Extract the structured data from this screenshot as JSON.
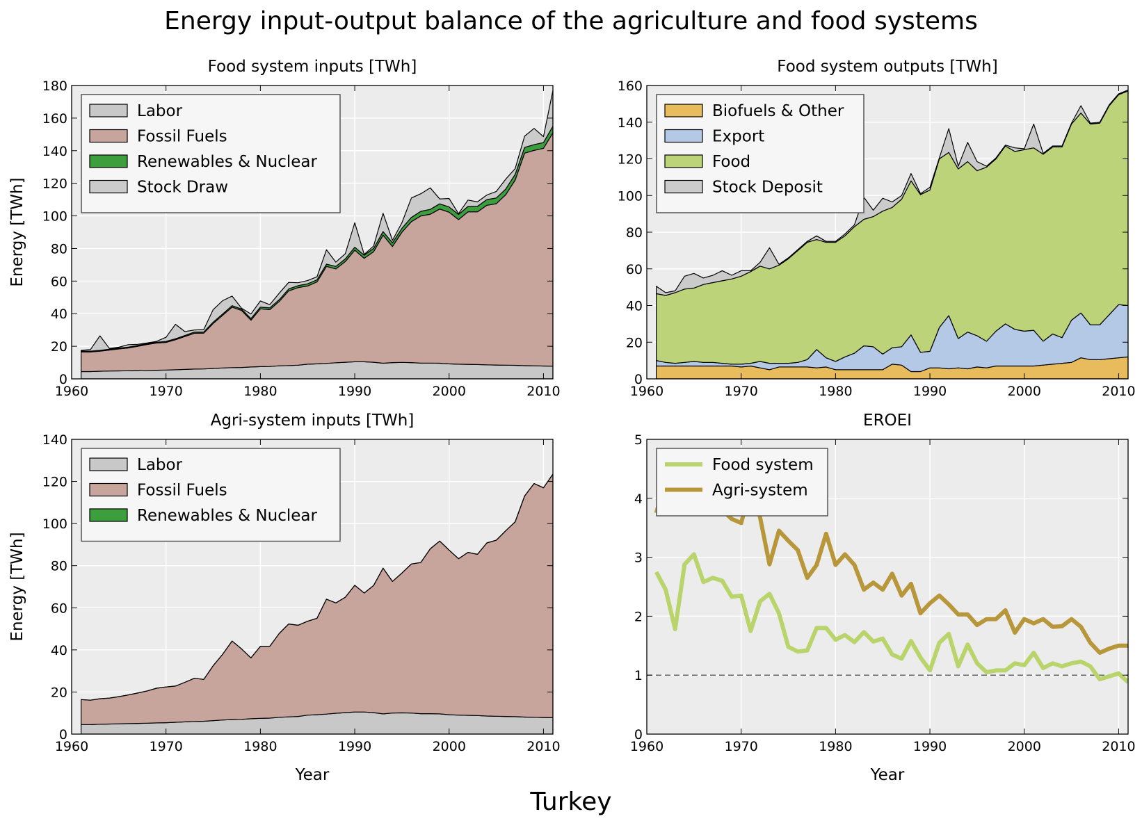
{
  "figure": {
    "title": "Energy input-output balance of the agriculture and food systems",
    "footer": "Turkey"
  },
  "chart_data": [
    {
      "id": "food_inputs",
      "type": "area",
      "stacked": true,
      "title": "Food system inputs [TWh]",
      "xlabel": "",
      "ylabel": "Energy [TWh]",
      "xlim": [
        1960,
        2011
      ],
      "ylim": [
        0,
        180
      ],
      "xticks": [
        1960,
        1970,
        1980,
        1990,
        2000,
        2010
      ],
      "yticks": [
        0,
        20,
        40,
        60,
        80,
        100,
        120,
        140,
        160,
        180
      ],
      "grid": true,
      "legend": "top-left",
      "x": [
        1961,
        1962,
        1963,
        1964,
        1965,
        1966,
        1967,
        1968,
        1969,
        1970,
        1971,
        1972,
        1973,
        1974,
        1975,
        1976,
        1977,
        1978,
        1979,
        1980,
        1981,
        1982,
        1983,
        1984,
        1985,
        1986,
        1987,
        1988,
        1989,
        1990,
        1991,
        1992,
        1993,
        1994,
        1995,
        1996,
        1997,
        1998,
        1999,
        2000,
        2001,
        2002,
        2003,
        2004,
        2005,
        2006,
        2007,
        2008,
        2009,
        2010,
        2011
      ],
      "series": [
        {
          "name": "Labor",
          "color": "#c8c8c8",
          "values": [
            4.5,
            4.5,
            4.7,
            4.8,
            4.9,
            5.0,
            5.1,
            5.2,
            5.3,
            5.4,
            5.6,
            5.8,
            6.0,
            6.1,
            6.4,
            6.7,
            6.9,
            7.0,
            7.3,
            7.5,
            7.6,
            8.0,
            8.2,
            8.4,
            9.0,
            9.2,
            9.5,
            9.9,
            10.2,
            10.5,
            10.5,
            10.2,
            9.6,
            10.0,
            10.1,
            10.0,
            9.7,
            9.7,
            9.6,
            9.2,
            9.0,
            8.9,
            8.8,
            8.6,
            8.5,
            8.4,
            8.3,
            8.1,
            8.0,
            7.9,
            7.8
          ]
        },
        {
          "name": "Fossil Fuels",
          "color": "#c8a59c",
          "values": [
            12.0,
            12.0,
            12.3,
            12.9,
            13.5,
            14.0,
            14.9,
            15.9,
            16.7,
            17.0,
            18.4,
            20.2,
            22.0,
            22.0,
            27.6,
            32.3,
            37.1,
            35.0,
            28.7,
            35.5,
            34.9,
            39.5,
            45.8,
            47.6,
            48.0,
            50.3,
            59.5,
            57.6,
            61.8,
            68.5,
            63.5,
            67.8,
            78.6,
            71.2,
            79.9,
            86.5,
            90.3,
            91.3,
            94.6,
            93.1,
            88.7,
            93.6,
            93.7,
            97.9,
            99.0,
            104.6,
            113.7,
            130.4,
            132.2,
            133.6,
            143.2
          ]
        },
        {
          "name": "Renewables & Nuclear",
          "color": "#3d9e3d",
          "values": [
            0.5,
            0.5,
            0.5,
            0.5,
            0.5,
            0.5,
            0.5,
            0.5,
            0.5,
            0.6,
            0.6,
            0.6,
            0.7,
            0.7,
            0.8,
            0.8,
            0.9,
            0.9,
            1.0,
            1.0,
            1.1,
            1.1,
            1.2,
            1.2,
            1.3,
            1.3,
            1.4,
            1.5,
            1.6,
            1.8,
            1.9,
            2.0,
            2.2,
            2.3,
            2.4,
            2.6,
            2.8,
            3.0,
            3.2,
            3.2,
            3.2,
            3.3,
            3.4,
            3.5,
            3.5,
            3.5,
            3.5,
            3.5,
            3.5,
            3.5,
            4.0
          ]
        },
        {
          "name": "Stock Draw",
          "color": "#cbcbcb",
          "values": [
            0.5,
            1.0,
            8.9,
            0.5,
            0.5,
            1.5,
            0.7,
            0.4,
            0.5,
            2.5,
            8.9,
            2.4,
            1.3,
            1.5,
            7.7,
            8.2,
            5.9,
            0.5,
            2.8,
            3.8,
            1.9,
            4.0,
            4.0,
            1.8,
            2.0,
            1.8,
            8.8,
            2.6,
            3.2,
            15.0,
            0.5,
            1.5,
            11.2,
            1.5,
            3.4,
            11.9,
            10.8,
            13.2,
            3.0,
            5.2,
            0.5,
            3.9,
            2.7,
            2.8,
            4.0,
            6.1,
            3.5,
            6.9,
            10.0,
            3.6,
            22.0
          ]
        }
      ]
    },
    {
      "id": "food_outputs",
      "type": "area",
      "stacked": true,
      "title": "Food system outputs [TWh]",
      "xlabel": "",
      "ylabel": "",
      "xlim": [
        1960,
        2011
      ],
      "ylim": [
        0,
        160
      ],
      "xticks": [
        1960,
        1970,
        1980,
        1990,
        2000,
        2010
      ],
      "yticks": [
        0,
        20,
        40,
        60,
        80,
        100,
        120,
        140,
        160
      ],
      "grid": true,
      "legend": "top-left",
      "x": [
        1961,
        1962,
        1963,
        1964,
        1965,
        1966,
        1967,
        1968,
        1969,
        1970,
        1971,
        1972,
        1973,
        1974,
        1975,
        1976,
        1977,
        1978,
        1979,
        1980,
        1981,
        1982,
        1983,
        1984,
        1985,
        1986,
        1987,
        1988,
        1989,
        1990,
        1991,
        1992,
        1993,
        1994,
        1995,
        1996,
        1997,
        1998,
        1999,
        2000,
        2001,
        2002,
        2003,
        2004,
        2005,
        2006,
        2007,
        2008,
        2009,
        2010,
        2011
      ],
      "series": [
        {
          "name": "Biofuels & Other",
          "color": "#e8bc5c",
          "values": [
            7.0,
            7.0,
            7.0,
            7.0,
            7.0,
            7.0,
            7.0,
            7.0,
            7.0,
            6.5,
            7.0,
            6.0,
            5.0,
            6.5,
            6.5,
            6.5,
            6.5,
            6.0,
            6.5,
            5.0,
            5.0,
            5.0,
            5.0,
            5.0,
            5.0,
            8.0,
            7.5,
            4.0,
            4.0,
            6.0,
            6.0,
            5.5,
            6.0,
            5.5,
            6.5,
            6.0,
            7.0,
            7.0,
            7.0,
            7.0,
            7.0,
            7.5,
            8.0,
            8.5,
            9.0,
            11.5,
            10.5,
            10.5,
            11.0,
            11.5,
            12.0
          ]
        },
        {
          "name": "Export",
          "color": "#b3c9e6",
          "values": [
            3.0,
            2.0,
            1.5,
            2.0,
            2.5,
            2.0,
            2.0,
            1.5,
            1.0,
            1.5,
            1.5,
            3.5,
            3.5,
            2.0,
            2.0,
            2.5,
            4.0,
            10.0,
            5.0,
            4.5,
            7.0,
            9.0,
            13.0,
            12.5,
            8.5,
            9.0,
            10.0,
            20.0,
            10.5,
            9.0,
            22.0,
            29.0,
            16.0,
            20.0,
            17.0,
            14.5,
            19.0,
            23.0,
            20.0,
            19.0,
            19.5,
            13.0,
            16.5,
            14.0,
            23.0,
            24.5,
            19.0,
            19.0,
            24.0,
            29.0,
            28.0
          ]
        },
        {
          "name": "Food",
          "color": "#bcd37a",
          "values": [
            36.5,
            36.5,
            38.5,
            40.0,
            40.0,
            42.5,
            43.5,
            45.0,
            46.5,
            48.0,
            50.0,
            52.0,
            51.5,
            53.5,
            57.0,
            61.0,
            64.0,
            60.0,
            63.0,
            65.0,
            66.0,
            69.0,
            69.0,
            71.0,
            78.0,
            76.5,
            80.5,
            84.0,
            86.0,
            88.0,
            92.0,
            89.0,
            92.5,
            93.0,
            90.0,
            95.0,
            94.0,
            97.0,
            97.0,
            99.0,
            99.5,
            102.0,
            102.0,
            104.0,
            107.0,
            109.0,
            109.5,
            110.0,
            114.0,
            114.5,
            117.0
          ]
        },
        {
          "name": "Stock Deposit",
          "color": "#cbcbcb",
          "values": [
            4.0,
            1.5,
            1.0,
            7.0,
            8.0,
            3.5,
            4.0,
            5.5,
            2.0,
            3.0,
            0.5,
            2.0,
            11.5,
            0.5,
            0.5,
            0.5,
            0.5,
            2.0,
            0.5,
            0.5,
            1.0,
            1.0,
            12.0,
            3.5,
            7.0,
            3.0,
            2.0,
            4.0,
            0.5,
            1.5,
            0.5,
            13.0,
            1.5,
            10.5,
            5.0,
            0.5,
            0.5,
            0.5,
            2.0,
            0.5,
            13.0,
            0.5,
            0.5,
            0.5,
            0.5,
            4.0,
            0.5,
            0.5,
            0.5,
            0.5,
            0.5
          ]
        }
      ]
    },
    {
      "id": "agri_inputs",
      "type": "area",
      "stacked": true,
      "title": "Agri-system inputs [TWh]",
      "xlabel": "Year",
      "ylabel": "Energy [TWh]",
      "xlim": [
        1960,
        2011
      ],
      "ylim": [
        0,
        140
      ],
      "xticks": [
        1960,
        1970,
        1980,
        1990,
        2000,
        2010
      ],
      "yticks": [
        0,
        20,
        40,
        60,
        80,
        100,
        120,
        140
      ],
      "grid": true,
      "legend": "top-left",
      "x": [
        1961,
        1962,
        1963,
        1964,
        1965,
        1966,
        1967,
        1968,
        1969,
        1970,
        1971,
        1972,
        1973,
        1974,
        1975,
        1976,
        1977,
        1978,
        1979,
        1980,
        1981,
        1982,
        1983,
        1984,
        1985,
        1986,
        1987,
        1988,
        1989,
        1990,
        1991,
        1992,
        1993,
        1994,
        1995,
        1996,
        1997,
        1998,
        1999,
        2000,
        2001,
        2002,
        2003,
        2004,
        2005,
        2006,
        2007,
        2008,
        2009,
        2010,
        2011
      ],
      "series": [
        {
          "name": "Labor",
          "color": "#c8c8c8",
          "values": [
            4.5,
            4.5,
            4.7,
            4.8,
            4.9,
            5.0,
            5.1,
            5.2,
            5.3,
            5.4,
            5.6,
            5.8,
            6.0,
            6.1,
            6.4,
            6.7,
            6.9,
            7.0,
            7.3,
            7.5,
            7.6,
            8.0,
            8.2,
            8.4,
            9.0,
            9.2,
            9.5,
            9.9,
            10.2,
            10.5,
            10.5,
            10.2,
            9.6,
            10.0,
            10.1,
            10.0,
            9.7,
            9.7,
            9.6,
            9.2,
            9.0,
            8.9,
            8.8,
            8.6,
            8.5,
            8.4,
            8.3,
            8.1,
            8.0,
            7.9,
            7.8
          ]
        },
        {
          "name": "Fossil Fuels",
          "color": "#c8a59c",
          "values": [
            11.9,
            11.6,
            12.1,
            12.3,
            12.9,
            13.6,
            14.4,
            15.3,
            16.5,
            17.0,
            17.2,
            18.8,
            20.5,
            19.9,
            26.1,
            31.2,
            37.3,
            33.5,
            28.9,
            34.2,
            34.1,
            39.8,
            44.1,
            43.3,
            44.6,
            45.8,
            54.6,
            52.4,
            54.8,
            60.2,
            56.5,
            60.4,
            69.2,
            62.5,
            66.4,
            70.8,
            71.8,
            78.3,
            82.1,
            78.2,
            74.3,
            77.4,
            76.6,
            82.2,
            83.6,
            88.2,
            92.5,
            105.0,
            111.0,
            109.1,
            115.7
          ]
        },
        {
          "name": "Renewables & Nuclear",
          "color": "#3d9e3d",
          "values": [
            0,
            0,
            0,
            0,
            0,
            0,
            0,
            0,
            0,
            0,
            0,
            0,
            0,
            0,
            0,
            0,
            0,
            0,
            0,
            0,
            0,
            0,
            0,
            0,
            0,
            0,
            0,
            0,
            0,
            0,
            0,
            0,
            0,
            0,
            0,
            0,
            0,
            0,
            0,
            0,
            0,
            0,
            0,
            0,
            0,
            0,
            0,
            0,
            0,
            0,
            0
          ]
        }
      ]
    },
    {
      "id": "eroei",
      "type": "line",
      "title": "EROEI",
      "xlabel": "Year",
      "ylabel": "",
      "xlim": [
        1960,
        2011
      ],
      "ylim": [
        0,
        5
      ],
      "xticks": [
        1960,
        1970,
        1980,
        1990,
        2000,
        2010
      ],
      "yticks": [
        0,
        1,
        2,
        3,
        4,
        5
      ],
      "grid": true,
      "reference_line": 1,
      "legend": "top-left",
      "x": [
        1961,
        1962,
        1963,
        1964,
        1965,
        1966,
        1967,
        1968,
        1969,
        1970,
        1971,
        1972,
        1973,
        1974,
        1975,
        1976,
        1977,
        1978,
        1979,
        1980,
        1981,
        1982,
        1983,
        1984,
        1985,
        1986,
        1987,
        1988,
        1989,
        1990,
        1991,
        1992,
        1993,
        1994,
        1995,
        1996,
        1997,
        1998,
        1999,
        2000,
        2001,
        2002,
        2003,
        2004,
        2005,
        2006,
        2007,
        2008,
        2009,
        2010,
        2011
      ],
      "series": [
        {
          "name": "Food system",
          "color": "#b8d46a",
          "values": [
            2.75,
            2.45,
            1.78,
            2.88,
            3.05,
            2.58,
            2.65,
            2.6,
            2.33,
            2.35,
            1.75,
            2.25,
            2.38,
            2.05,
            1.48,
            1.4,
            1.42,
            1.8,
            1.8,
            1.6,
            1.68,
            1.56,
            1.73,
            1.57,
            1.62,
            1.35,
            1.28,
            1.58,
            1.3,
            1.08,
            1.55,
            1.7,
            1.15,
            1.52,
            1.2,
            1.05,
            1.08,
            1.08,
            1.2,
            1.17,
            1.38,
            1.12,
            1.2,
            1.15,
            1.2,
            1.23,
            1.15,
            0.93,
            0.98,
            1.03,
            0.88
          ]
        },
        {
          "name": "Agri-system",
          "color": "#b8963a",
          "values": [
            3.75,
            4.3,
            4.72,
            4.35,
            4.05,
            4.35,
            4.2,
            3.8,
            3.65,
            3.58,
            4.18,
            3.68,
            2.88,
            3.45,
            3.28,
            3.12,
            2.65,
            2.87,
            3.4,
            2.87,
            3.05,
            2.87,
            2.45,
            2.57,
            2.45,
            2.72,
            2.35,
            2.55,
            2.05,
            2.22,
            2.35,
            2.2,
            2.03,
            2.03,
            1.85,
            1.95,
            1.95,
            2.1,
            1.72,
            1.95,
            1.88,
            1.95,
            1.82,
            1.83,
            1.95,
            1.82,
            1.55,
            1.38,
            1.45,
            1.5,
            1.5
          ]
        }
      ]
    }
  ]
}
